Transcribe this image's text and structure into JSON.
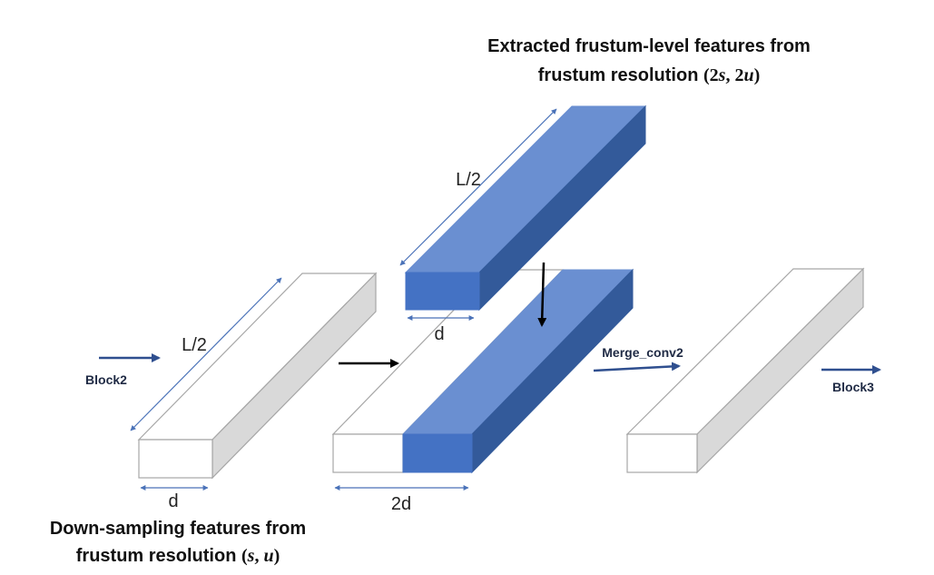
{
  "titles": {
    "top_line1": "Extracted frustum-level features from",
    "top_line2_prefix": "frustum resolution ",
    "top_line2_math": [
      "(",
      "2",
      "s",
      ", ",
      "2",
      "u",
      ")"
    ],
    "bottom_line1": "Down-sampling features from",
    "bottom_line2_prefix": "frustum resolution ",
    "bottom_line2_math": [
      "(",
      "s",
      ", ",
      "u",
      ")"
    ]
  },
  "dimensions": {
    "left_length": "L/2",
    "left_width": "d",
    "top_length": "L/2",
    "top_width": "d",
    "merged_width": "2d"
  },
  "blocks": {
    "input": "Block2",
    "merge": "Merge_conv2",
    "output": "Block3"
  },
  "colors": {
    "blue_front": "#4472c4",
    "blue_top": "#6a8fd1",
    "blue_side": "#335a9a",
    "gray_side": "#d9d9d9",
    "outline": "#a6a6a6",
    "dim_arrow": "#4a72b8",
    "flow_arrow": "#2f4f8f"
  }
}
